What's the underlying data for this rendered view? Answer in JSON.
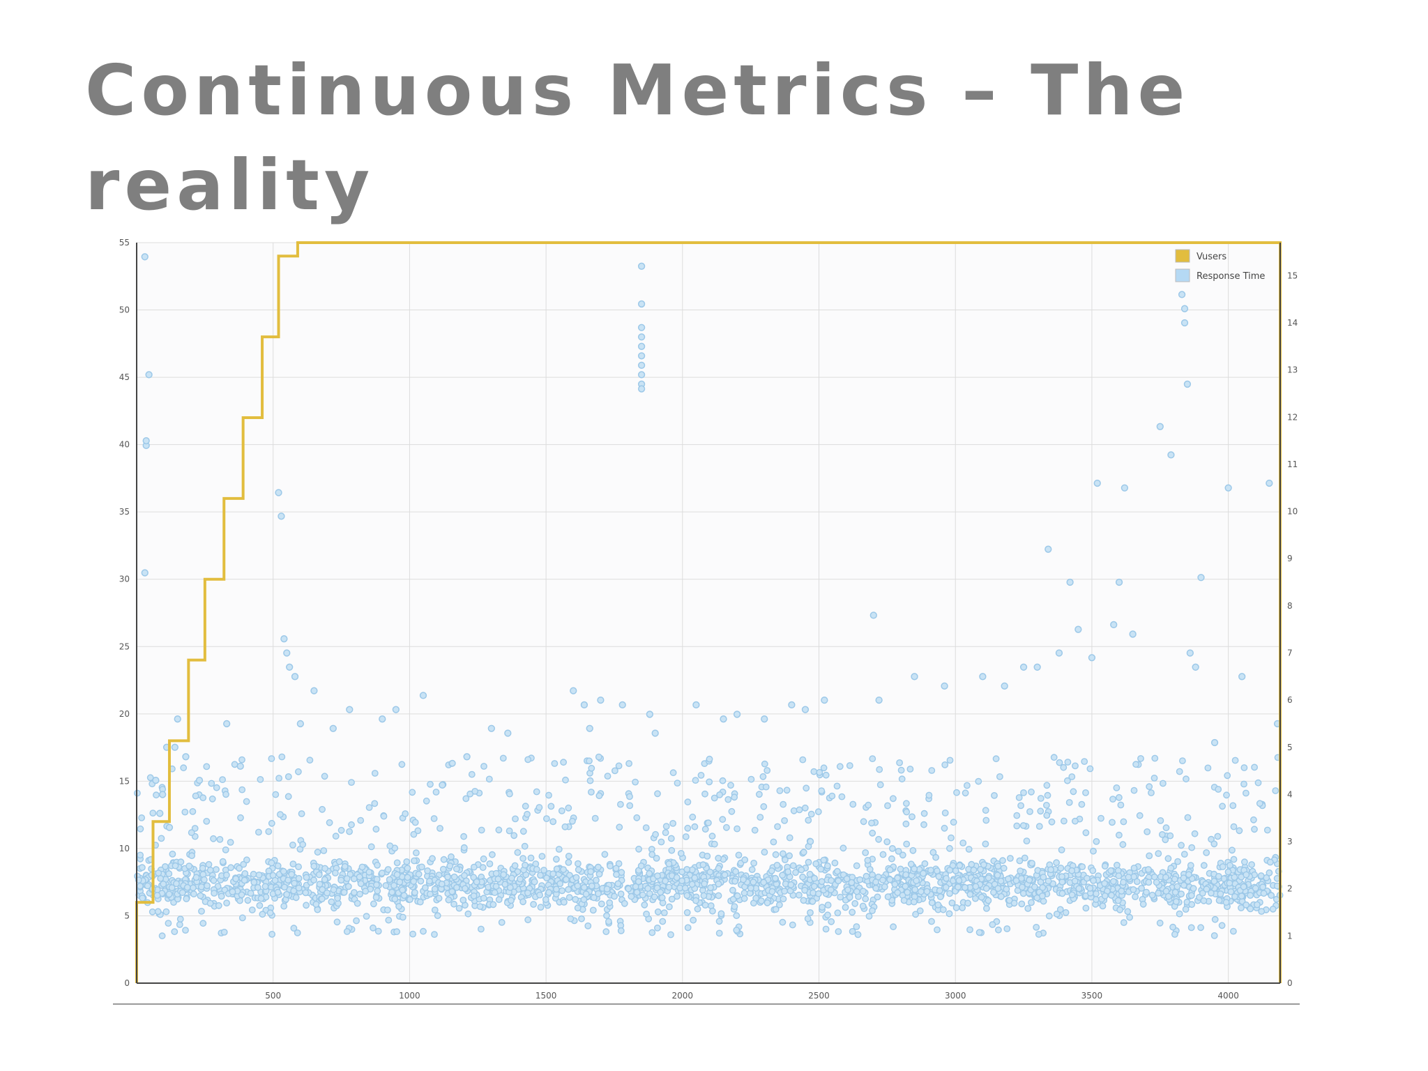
{
  "slide": {
    "title": "Continuous Metrics – The reality"
  },
  "chart_data": {
    "type": "scatter",
    "title": "",
    "xlabel": "",
    "ylabel": "",
    "y2label": "",
    "grid": true,
    "legend_placement": "top-right",
    "xlim": [
      0,
      4190
    ],
    "ylim": [
      0,
      55
    ],
    "y2lim": [
      0,
      15.7
    ],
    "x_ticks": [
      500,
      1000,
      1500,
      2000,
      2500,
      3000,
      3500,
      4000
    ],
    "y_ticks": [
      0,
      5,
      10,
      15,
      20,
      25,
      30,
      35,
      40,
      45,
      50,
      55
    ],
    "y2_ticks": [
      0,
      1,
      2,
      3,
      4,
      5,
      6,
      7,
      8,
      9,
      10,
      11,
      12,
      13,
      14,
      15
    ],
    "colors": {
      "vusers": "#e2bd3e",
      "response_time_fill": "#c9e3f5",
      "response_time_stroke": "#9cc8e8",
      "grid": "#dcdcdc",
      "plot_bg": "#fbfbfc"
    },
    "legend": [
      {
        "name": "Vusers",
        "color": "#e2bd3e"
      },
      {
        "name": "Response Time",
        "color": "#b5d9f4"
      }
    ],
    "series": [
      {
        "name": "Vusers",
        "axis": "left",
        "style": "step",
        "x": [
          0,
          60,
          120,
          190,
          250,
          320,
          390,
          460,
          520,
          590,
          4190
        ],
        "y": [
          6,
          12,
          18,
          24,
          30,
          36,
          42,
          48,
          54,
          55,
          55
        ]
      },
      {
        "name": "Response Time",
        "axis": "right",
        "style": "scatter",
        "x": [
          30,
          30,
          35,
          35,
          45,
          70,
          85,
          95,
          110,
          120,
          140,
          150,
          180,
          230,
          330,
          380,
          520,
          530,
          540,
          550,
          560,
          580,
          600,
          650,
          720,
          780,
          900,
          950,
          1050,
          1120,
          1210,
          1300,
          1360,
          1600,
          1640,
          1660,
          1700,
          1780,
          1850,
          1850,
          1850,
          1850,
          1850,
          1850,
          1850,
          1850,
          1850,
          1850,
          1880,
          1900,
          2050,
          2150,
          2200,
          2300,
          2400,
          2450,
          2520,
          2700,
          2720,
          2850,
          2960,
          3100,
          3180,
          3250,
          3300,
          3340,
          3380,
          3420,
          3450,
          3500,
          3520,
          3580,
          3600,
          3620,
          3650,
          3750,
          3790,
          3830,
          3840,
          3840,
          3850,
          3860,
          3880,
          3900,
          3950,
          4000,
          4050,
          4150,
          4180
        ],
        "y": [
          15.4,
          8.7,
          11.4,
          11.5,
          12.9,
          4.3,
          3.6,
          4.0,
          5.0,
          3.3,
          5.0,
          5.6,
          4.8,
          4.3,
          5.5,
          4.6,
          10.4,
          9.9,
          7.3,
          7.0,
          6.7,
          6.5,
          5.5,
          6.2,
          5.4,
          5.8,
          5.6,
          5.8,
          6.1,
          4.2,
          4.8,
          5.4,
          5.3,
          6.2,
          5.9,
          5.4,
          6.0,
          5.9,
          15.2,
          14.4,
          13.9,
          13.7,
          13.5,
          13.3,
          13.1,
          12.9,
          12.7,
          12.6,
          5.7,
          5.3,
          5.9,
          5.6,
          5.7,
          5.6,
          5.9,
          5.8,
          6.0,
          7.8,
          6.0,
          6.5,
          6.3,
          6.5,
          6.3,
          6.7,
          6.7,
          9.2,
          7.0,
          8.5,
          7.5,
          6.9,
          10.6,
          7.6,
          8.5,
          10.5,
          7.4,
          11.8,
          11.2,
          14.6,
          14.3,
          14.0,
          12.7,
          7.0,
          6.7,
          8.6,
          5.1,
          10.5,
          6.5,
          10.6,
          5.5
        ]
      }
    ],
    "dense_band": {
      "series": "Response Time",
      "x_range": [
        0,
        4190
      ],
      "y2_range": [
        1,
        4
      ],
      "core_y2": 2
    }
  }
}
